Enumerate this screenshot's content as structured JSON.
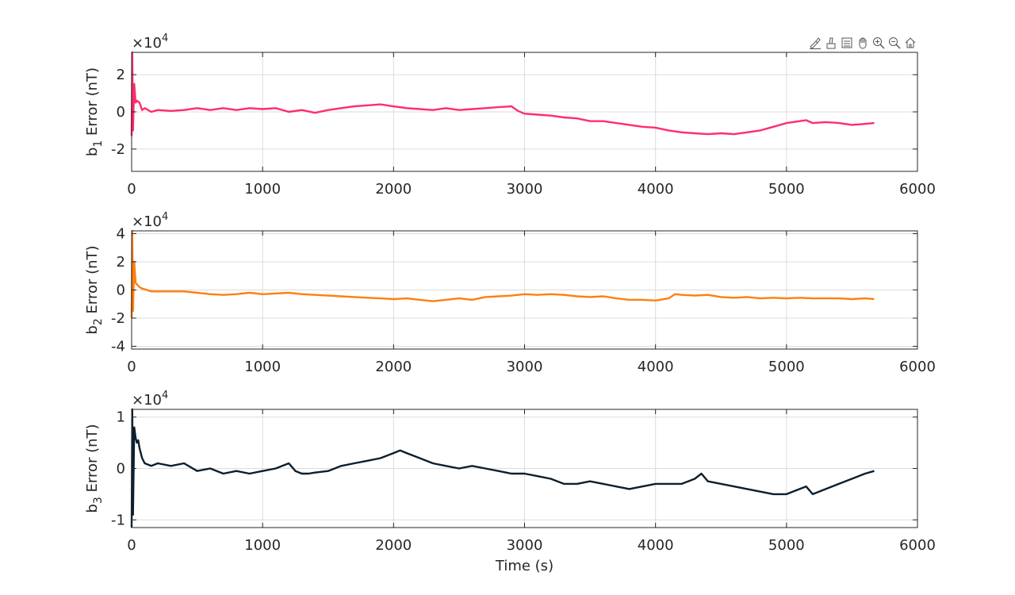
{
  "toolbar": {
    "buttons": [
      "brush-icon",
      "data-tip-icon",
      "legend-toggle-icon",
      "pan-icon",
      "zoom-in-icon",
      "zoom-out-icon",
      "home-icon"
    ]
  },
  "colors": {
    "b1": "#ff2d6b",
    "b2": "#ff7f0e",
    "b3": "#0b1f2e",
    "grid": "#dcdcdc",
    "axis": "#262626"
  },
  "chart_data": [
    {
      "type": "line",
      "ylabel_main": "b",
      "ylabel_sub": "1",
      "ylabel_tail": " Error (nT)",
      "exponent_base": "×10",
      "exponent_power": "4",
      "xlim": [
        0,
        6000
      ],
      "ylim": [
        -3.2,
        3.2
      ],
      "xticks": [
        "0",
        "1000",
        "2000",
        "3000",
        "4000",
        "5000",
        "6000"
      ],
      "xtick_values": [
        0,
        1000,
        2000,
        3000,
        4000,
        5000,
        6000
      ],
      "yticks": [
        "-2",
        "0",
        "2"
      ],
      "ytick_values": [
        -2,
        0,
        2
      ],
      "grid": true,
      "series": [
        {
          "color": "#ff2d6b",
          "x": [
            0,
            5,
            10,
            20,
            30,
            40,
            60,
            80,
            100,
            150,
            200,
            300,
            400,
            500,
            600,
            700,
            800,
            900,
            1000,
            1100,
            1200,
            1300,
            1400,
            1500,
            1600,
            1700,
            1800,
            1900,
            2000,
            2100,
            2200,
            2300,
            2400,
            2500,
            2600,
            2700,
            2800,
            2900,
            2950,
            3000,
            3100,
            3200,
            3300,
            3400,
            3500,
            3600,
            3700,
            3800,
            3900,
            4000,
            4100,
            4200,
            4300,
            4400,
            4500,
            4600,
            4700,
            4800,
            4900,
            5000,
            5100,
            5150,
            5200,
            5300,
            5400,
            5500,
            5600,
            5670
          ],
          "y": [
            -1.3,
            3.2,
            -1.0,
            1.5,
            0.5,
            0.6,
            0.5,
            0.1,
            0.2,
            0.0,
            0.1,
            0.05,
            0.1,
            0.2,
            0.1,
            0.2,
            0.1,
            0.2,
            0.15,
            0.2,
            0.0,
            0.1,
            -0.05,
            0.1,
            0.2,
            0.3,
            0.35,
            0.4,
            0.3,
            0.2,
            0.15,
            0.1,
            0.2,
            0.1,
            0.15,
            0.2,
            0.25,
            0.3,
            0.05,
            -0.1,
            -0.15,
            -0.2,
            -0.3,
            -0.35,
            -0.5,
            -0.5,
            -0.6,
            -0.7,
            -0.8,
            -0.85,
            -1.0,
            -1.1,
            -1.15,
            -1.2,
            -1.15,
            -1.2,
            -1.1,
            -1.0,
            -0.8,
            -0.6,
            -0.5,
            -0.45,
            -0.6,
            -0.55,
            -0.6,
            -0.7,
            -0.65,
            -0.6
          ]
        }
      ]
    },
    {
      "type": "line",
      "ylabel_main": "b",
      "ylabel_sub": "2",
      "ylabel_tail": " Error (nT)",
      "exponent_base": "×10",
      "exponent_power": "4",
      "xlim": [
        0,
        6000
      ],
      "ylim": [
        -4.2,
        4.2
      ],
      "xticks": [
        "0",
        "1000",
        "2000",
        "3000",
        "4000",
        "5000",
        "6000"
      ],
      "xtick_values": [
        0,
        1000,
        2000,
        3000,
        4000,
        5000,
        6000
      ],
      "yticks": [
        "-4",
        "-2",
        "0",
        "2",
        "4"
      ],
      "ytick_values": [
        -4,
        -2,
        0,
        2,
        4
      ],
      "grid": true,
      "series": [
        {
          "color": "#ff7f0e",
          "x": [
            0,
            5,
            10,
            20,
            30,
            40,
            60,
            80,
            100,
            150,
            200,
            300,
            400,
            500,
            600,
            700,
            800,
            900,
            1000,
            1100,
            1200,
            1300,
            1400,
            1500,
            1600,
            1700,
            1800,
            1900,
            2000,
            2100,
            2200,
            2300,
            2400,
            2500,
            2600,
            2700,
            2800,
            2900,
            3000,
            3100,
            3200,
            3300,
            3400,
            3500,
            3600,
            3700,
            3800,
            3900,
            4000,
            4100,
            4150,
            4200,
            4300,
            4400,
            4500,
            4600,
            4700,
            4800,
            4900,
            5000,
            5100,
            5200,
            5300,
            5400,
            5500,
            5600,
            5670
          ],
          "y": [
            -2.0,
            4.2,
            -1.5,
            2.0,
            0.5,
            0.4,
            0.2,
            0.1,
            0.05,
            -0.1,
            -0.1,
            -0.1,
            -0.1,
            -0.2,
            -0.3,
            -0.35,
            -0.3,
            -0.2,
            -0.3,
            -0.25,
            -0.2,
            -0.3,
            -0.35,
            -0.4,
            -0.45,
            -0.5,
            -0.55,
            -0.6,
            -0.65,
            -0.6,
            -0.7,
            -0.8,
            -0.7,
            -0.6,
            -0.7,
            -0.5,
            -0.45,
            -0.4,
            -0.3,
            -0.35,
            -0.3,
            -0.35,
            -0.45,
            -0.5,
            -0.45,
            -0.6,
            -0.7,
            -0.7,
            -0.75,
            -0.6,
            -0.3,
            -0.35,
            -0.4,
            -0.35,
            -0.5,
            -0.55,
            -0.5,
            -0.6,
            -0.55,
            -0.6,
            -0.55,
            -0.6,
            -0.6,
            -0.6,
            -0.65,
            -0.6,
            -0.65
          ]
        }
      ]
    },
    {
      "type": "line",
      "ylabel_main": "b",
      "ylabel_sub": "3",
      "ylabel_tail": " Error (nT)",
      "exponent_base": "×10",
      "exponent_power": "4",
      "xlabel": "Time (s)",
      "xlim": [
        0,
        6000
      ],
      "ylim": [
        -1.15,
        1.15
      ],
      "xticks": [
        "0",
        "1000",
        "2000",
        "3000",
        "4000",
        "5000",
        "6000"
      ],
      "xtick_values": [
        0,
        1000,
        2000,
        3000,
        4000,
        5000,
        6000
      ],
      "yticks": [
        "-1",
        "0",
        "1"
      ],
      "ytick_values": [
        -1,
        0,
        1
      ],
      "grid": true,
      "series": [
        {
          "color": "#0b1f2e",
          "x": [
            0,
            5,
            10,
            20,
            30,
            40,
            50,
            60,
            80,
            100,
            150,
            200,
            300,
            400,
            500,
            600,
            700,
            800,
            900,
            1000,
            1100,
            1200,
            1250,
            1300,
            1350,
            1400,
            1500,
            1600,
            1700,
            1800,
            1900,
            2000,
            2050,
            2100,
            2200,
            2300,
            2400,
            2500,
            2600,
            2700,
            2800,
            2900,
            3000,
            3100,
            3200,
            3300,
            3400,
            3500,
            3600,
            3700,
            3800,
            3900,
            4000,
            4100,
            4200,
            4300,
            4350,
            4400,
            4500,
            4600,
            4700,
            4800,
            4900,
            5000,
            5100,
            5150,
            5200,
            5300,
            5400,
            5500,
            5600,
            5670
          ],
          "y": [
            -1.15,
            1.15,
            -0.9,
            0.8,
            0.6,
            0.5,
            0.55,
            0.4,
            0.2,
            0.1,
            0.05,
            0.1,
            0.05,
            0.1,
            -0.05,
            0.0,
            -0.1,
            -0.05,
            -0.1,
            -0.05,
            0.0,
            0.1,
            -0.05,
            -0.1,
            -0.1,
            -0.08,
            -0.05,
            0.05,
            0.1,
            0.15,
            0.2,
            0.3,
            0.35,
            0.3,
            0.2,
            0.1,
            0.05,
            0.0,
            0.05,
            0.0,
            -0.05,
            -0.1,
            -0.1,
            -0.15,
            -0.2,
            -0.3,
            -0.3,
            -0.25,
            -0.3,
            -0.35,
            -0.4,
            -0.35,
            -0.3,
            -0.3,
            -0.3,
            -0.2,
            -0.1,
            -0.25,
            -0.3,
            -0.35,
            -0.4,
            -0.45,
            -0.5,
            -0.5,
            -0.4,
            -0.35,
            -0.5,
            -0.4,
            -0.3,
            -0.2,
            -0.1,
            -0.05
          ]
        }
      ]
    }
  ]
}
